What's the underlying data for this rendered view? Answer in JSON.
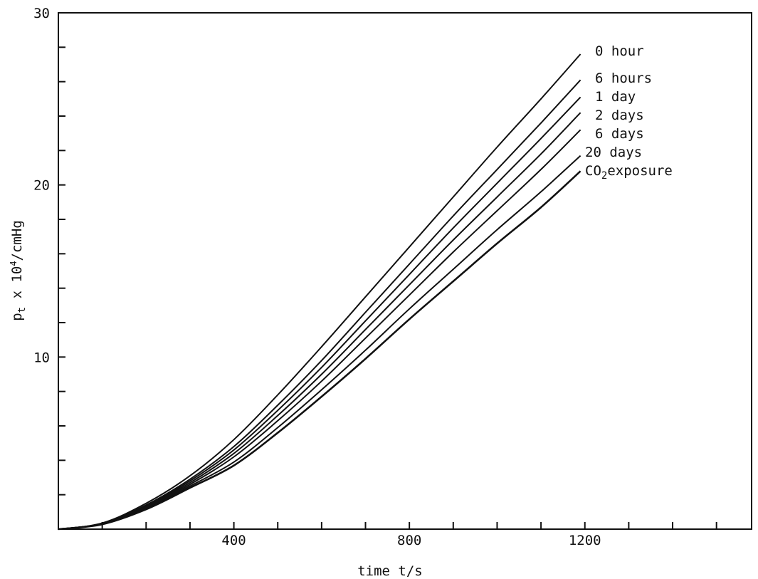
{
  "chart_data": {
    "type": "line",
    "xlabel": "time t/s",
    "ylabel_parts": {
      "base": "p",
      "sub": "t",
      "mid": " x 10",
      "sup": "4",
      "end": "/cmHg"
    },
    "xlim": [
      0,
      1580
    ],
    "ylim": [
      0,
      30
    ],
    "x_tick_labels": [
      {
        "value": 400,
        "label": "400"
      },
      {
        "value": 800,
        "label": "800"
      },
      {
        "value": 1200,
        "label": "1200"
      }
    ],
    "y_tick_labels": [
      {
        "value": 10,
        "label": "10"
      },
      {
        "value": 20,
        "label": "20"
      },
      {
        "value": 30,
        "label": "30"
      }
    ],
    "x_minor_ticks": [
      100,
      200,
      300,
      400,
      500,
      600,
      700,
      800,
      900,
      1000,
      1100,
      1200,
      1300,
      1400,
      1500
    ],
    "y_minor_ticks": [
      2,
      4,
      6,
      8,
      10,
      12,
      14,
      16,
      18,
      20,
      22,
      24,
      26,
      28
    ],
    "x": [
      0,
      100,
      200,
      300,
      400,
      500,
      600,
      700,
      800,
      900,
      1000,
      1100,
      1190
    ],
    "series": [
      {
        "name": "0 hour",
        "values": [
          0.0,
          0.35,
          1.5,
          3.1,
          5.2,
          7.8,
          10.6,
          13.5,
          16.4,
          19.3,
          22.2,
          25.0,
          27.6
        ]
      },
      {
        "name": "6 hours",
        "values": [
          0.0,
          0.33,
          1.4,
          2.9,
          4.8,
          7.2,
          9.8,
          12.6,
          15.4,
          18.2,
          20.9,
          23.6,
          26.1
        ]
      },
      {
        "name": "1 day",
        "values": [
          0.0,
          0.32,
          1.35,
          2.8,
          4.6,
          6.9,
          9.4,
          12.1,
          14.8,
          17.5,
          20.1,
          22.7,
          25.1
        ]
      },
      {
        "name": "2 days",
        "values": [
          0.0,
          0.31,
          1.3,
          2.7,
          4.4,
          6.6,
          9.0,
          11.6,
          14.2,
          16.8,
          19.3,
          21.8,
          24.2
        ]
      },
      {
        "name": "6 days",
        "values": [
          0.0,
          0.3,
          1.25,
          2.6,
          4.2,
          6.3,
          8.6,
          11.1,
          13.6,
          16.1,
          18.5,
          20.9,
          23.2
        ]
      },
      {
        "name": "20 days",
        "values": [
          0.0,
          0.29,
          1.2,
          2.5,
          3.9,
          5.9,
          8.1,
          10.4,
          12.8,
          15.1,
          17.4,
          19.6,
          21.7
        ]
      },
      {
        "name": "CO2exposure",
        "values": [
          0.0,
          0.28,
          1.15,
          2.4,
          3.7,
          5.6,
          7.7,
          9.9,
          12.2,
          14.4,
          16.6,
          18.7,
          20.8
        ]
      }
    ],
    "series_label_parts": {
      "co2_base": "CO",
      "co2_sub": "2",
      "co2_rest": "exposure"
    },
    "legend_placement": "right-end-of-lines",
    "grid": false
  }
}
